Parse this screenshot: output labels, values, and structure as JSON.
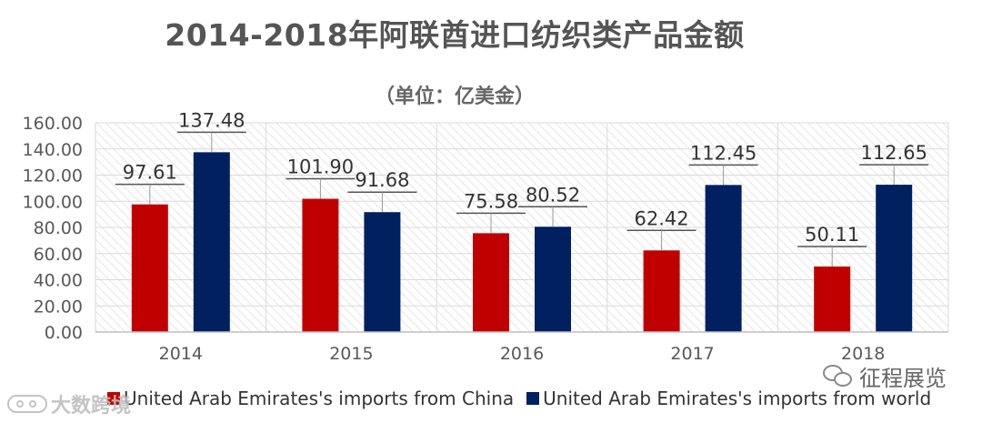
{
  "title": "2014-2018年阿联酋进口纺织类产品金额",
  "subtitle": "（单位：亿美金）",
  "colors": {
    "china": "#c00000",
    "world": "#002060",
    "grid": "#d9d9d9",
    "hatch": "#e6e6e6",
    "axis_text": "#595959"
  },
  "chart_data": {
    "type": "bar",
    "categories": [
      "2014",
      "2015",
      "2016",
      "2017",
      "2018"
    ],
    "series": [
      {
        "name": "United Arab Emirates's imports from China",
        "values": [
          97.61,
          101.9,
          75.58,
          62.42,
          50.11
        ],
        "labels": [
          "97.61",
          "101.90",
          "75.58",
          "62.42",
          "50.11"
        ]
      },
      {
        "name": "United Arab Emirates's imports from world",
        "values": [
          137.48,
          91.68,
          80.52,
          112.45,
          112.65
        ],
        "labels": [
          "137.48",
          "91.68",
          "80.52",
          "112.45",
          "112.65"
        ]
      }
    ],
    "yticks": [
      "0.00",
      "20.00",
      "40.00",
      "60.00",
      "80.00",
      "100.00",
      "120.00",
      "140.00",
      "160.00"
    ],
    "ylim": [
      0,
      160
    ],
    "grid": true,
    "legend_position": "bottom"
  },
  "legend": {
    "china_label": "United Arab Emirates's imports from China",
    "world_label": "United Arab Emirates's imports from world"
  },
  "watermarks": {
    "left": "大数跨境",
    "right": "征程展览"
  }
}
